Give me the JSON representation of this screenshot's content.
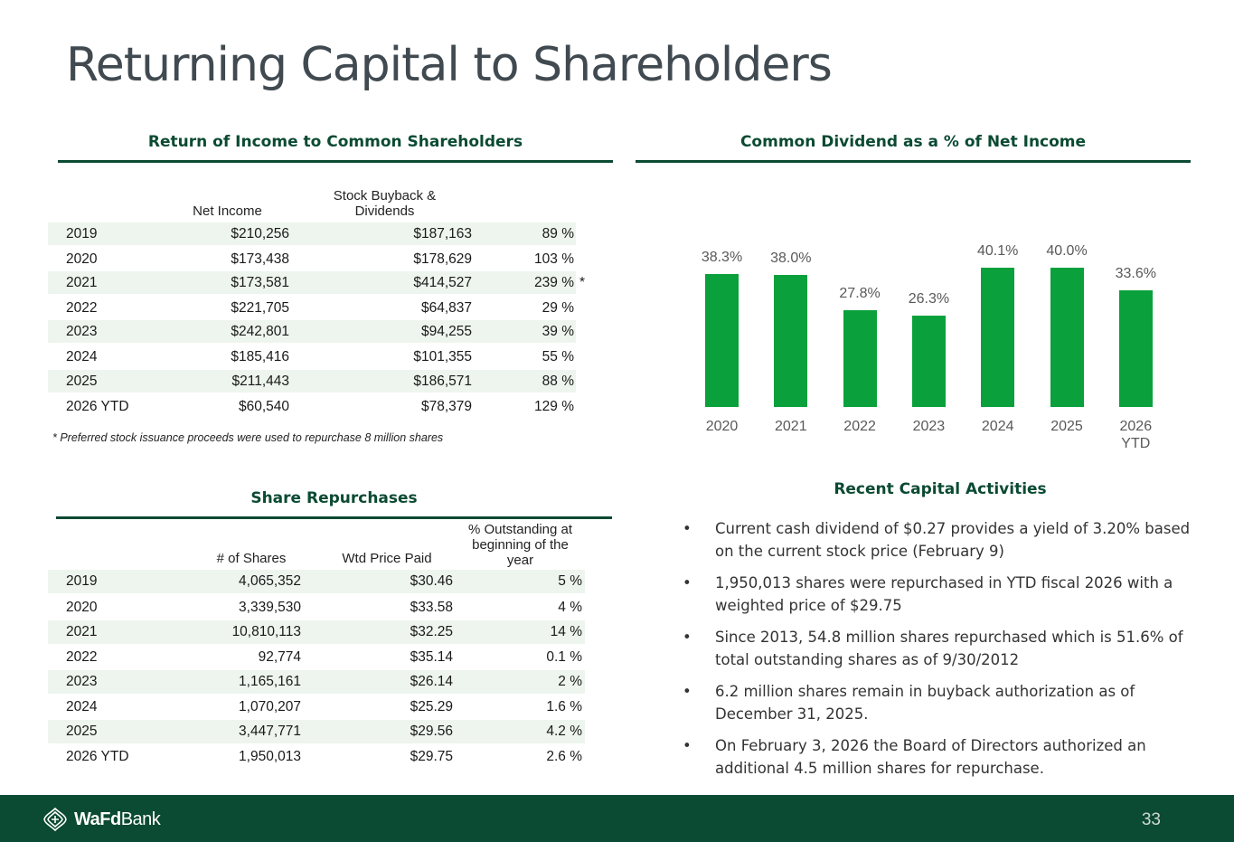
{
  "title": "Returning Capital to Shareholders",
  "sections": {
    "return_income": "Return of Income to Common Shareholders",
    "dividend_pct": "Common Dividend as a % of Net Income",
    "share_repurchases": "Share Repurchases",
    "recent_activities": "Recent Capital Activities"
  },
  "return_table": {
    "headers": [
      "Net Income",
      "Stock Buyback & Dividends"
    ],
    "rows": [
      {
        "year": "2019",
        "net_income": "$210,256",
        "buyback": "$187,163",
        "pct": "89 %"
      },
      {
        "year": "2020",
        "net_income": "$173,438",
        "buyback": "$178,629",
        "pct": "103 %"
      },
      {
        "year": "2021",
        "net_income": "$173,581",
        "buyback": "$414,527",
        "pct": "239 %"
      },
      {
        "year": "2022",
        "net_income": "$221,705",
        "buyback": "$64,837",
        "pct": "29 %"
      },
      {
        "year": "2023",
        "net_income": "$242,801",
        "buyback": "$94,255",
        "pct": "39 %"
      },
      {
        "year": "2024",
        "net_income": "$185,416",
        "buyback": "$101,355",
        "pct": "55 %"
      },
      {
        "year": "2025",
        "net_income": "$211,443",
        "buyback": "$186,571",
        "pct": "88 %"
      },
      {
        "year": "2026 YTD",
        "net_income": "$60,540",
        "buyback": "$78,379",
        "pct": "129 %"
      }
    ],
    "asterisk": "*",
    "footnote": "* Preferred stock issuance proceeds were used to repurchase 8 million shares"
  },
  "repurchase_table": {
    "headers": [
      "# of Shares",
      "Wtd Price Paid",
      "% Outstanding at beginning of the year"
    ],
    "rows": [
      {
        "year": "2019",
        "shares": "4,065,352",
        "price": "$30.46",
        "pct": "5 %"
      },
      {
        "year": "2020",
        "shares": "3,339,530",
        "price": "$33.58",
        "pct": "4 %"
      },
      {
        "year": "2021",
        "shares": "10,810,113",
        "price": "$32.25",
        "pct": "14 %"
      },
      {
        "year": "2022",
        "shares": "92,774",
        "price": "$35.14",
        "pct": "0.1 %"
      },
      {
        "year": "2023",
        "shares": "1,165,161",
        "price": "$26.14",
        "pct": "2 %"
      },
      {
        "year": "2024",
        "shares": "1,070,207",
        "price": "$25.29",
        "pct": "1.6 %"
      },
      {
        "year": "2025",
        "shares": "3,447,771",
        "price": "$29.56",
        "pct": "4.2 %"
      },
      {
        "year": "2026 YTD",
        "shares": "1,950,013",
        "price": "$29.75",
        "pct": "2.6 %"
      }
    ]
  },
  "chart_data": {
    "type": "bar",
    "title": "Common Dividend as a % of Net Income",
    "categories": [
      "2020",
      "2021",
      "2022",
      "2023",
      "2024",
      "2025",
      "2026 YTD"
    ],
    "values": [
      38.3,
      38.0,
      27.8,
      26.3,
      40.1,
      40.0,
      33.6
    ],
    "labels": [
      "38.3%",
      "38.0%",
      "27.8%",
      "26.3%",
      "40.1%",
      "40.0%",
      "33.6%"
    ],
    "xlabel": "",
    "ylabel": "",
    "ylim": [
      0,
      40.1
    ],
    "color": "#0aa03c"
  },
  "bullets": [
    "Current cash dividend of $0.27 provides a yield of 3.20% based on the current stock price (February 9)",
    "1,950,013 shares were repurchased in YTD fiscal 2026 with a weighted price of $29.75",
    "Since 2013, 54.8 million shares repurchased which is 51.6% of total outstanding shares as of 9/30/2012",
    "6.2 million shares remain in buyback authorization as of December 31, 2025.",
    "On February 3, 2026 the Board of Directors authorized an additional 4.5 million shares for repurchase."
  ],
  "bullet_symbol": "•",
  "footer": {
    "logo_bold": "WaFd",
    "logo_regular": "Bank",
    "page_number": "33",
    "colors": {
      "band": "#0b4a33",
      "text": "#ffffff"
    }
  },
  "icons": {
    "logo": "wafd-leaf-logo-icon"
  }
}
